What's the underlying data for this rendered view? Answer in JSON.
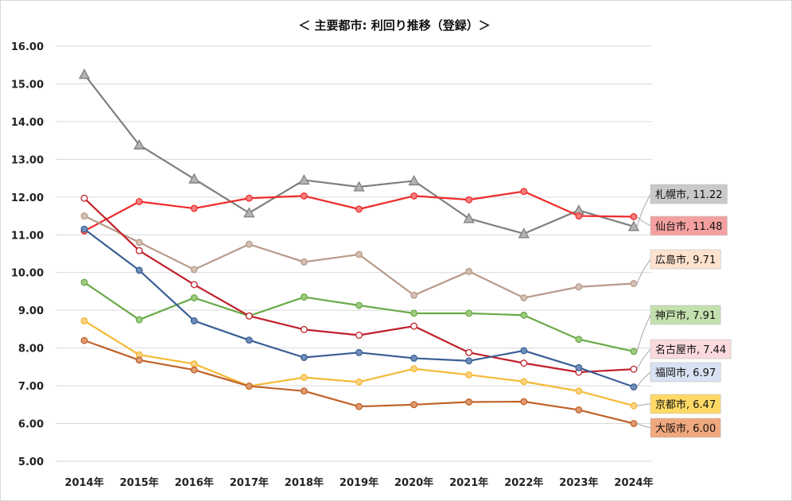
{
  "chart_data": {
    "type": "line",
    "title": "＜ 主要都市:  利回り推移（登録）＞",
    "xlabel": "",
    "ylabel": "",
    "ylim": [
      5,
      16
    ],
    "yticks": [
      "5.00",
      "6.00",
      "7.00",
      "8.00",
      "9.00",
      "10.00",
      "11.00",
      "12.00",
      "13.00",
      "14.00",
      "15.00",
      "16.00"
    ],
    "categories": [
      "2014年",
      "2015年",
      "2016年",
      "2017年",
      "2018年",
      "2019年",
      "2020年",
      "2021年",
      "2022年",
      "2023年",
      "2024年"
    ],
    "grid": true,
    "legend": "end-of-line labels",
    "series": [
      {
        "name": "札幌市",
        "label": "札幌市, 11.22",
        "color": "#7f7f7f",
        "marker": "triangle",
        "marker_fill": "#b3b3b3",
        "label_bg": "#c9c9c9",
        "values": [
          15.25,
          13.38,
          12.48,
          11.58,
          12.45,
          12.27,
          12.43,
          11.43,
          11.03,
          11.65,
          11.22
        ]
      },
      {
        "name": "仙台市",
        "label": "仙台市, 11.48",
        "color": "#ee2b2b",
        "marker": "circle",
        "marker_fill": "#f28080",
        "label_bg": "#f4a0a0",
        "values": [
          11.1,
          11.88,
          11.7,
          11.97,
          12.03,
          11.68,
          12.03,
          11.93,
          12.15,
          11.5,
          11.48
        ]
      },
      {
        "name": "広島市",
        "label": "広島市, 9.71",
        "color": "#b89a8a",
        "marker": "circle",
        "marker_fill": "#d4c0b4",
        "label_bg": "#fde3cf",
        "values": [
          11.5,
          10.8,
          10.08,
          10.75,
          10.28,
          10.48,
          9.4,
          10.03,
          9.33,
          9.62,
          9.71
        ]
      },
      {
        "name": "神戸市",
        "label": "神戸市, 7.91",
        "color": "#6aaa48",
        "marker": "circle",
        "marker_fill": "#9fcc7f",
        "label_bg": "#c3e0ae",
        "values": [
          9.74,
          8.75,
          9.33,
          8.85,
          9.35,
          9.13,
          8.92,
          8.92,
          8.87,
          8.23,
          7.91
        ]
      },
      {
        "name": "名古屋市",
        "label": "名古屋市, 7.44",
        "color": "#c0202a",
        "marker": "circle",
        "marker_fill": "#ffffff",
        "label_bg": "#fadadd",
        "values": [
          11.97,
          10.58,
          9.68,
          8.85,
          8.49,
          8.34,
          8.58,
          7.88,
          7.6,
          7.36,
          7.44
        ]
      },
      {
        "name": "福岡市",
        "label": "福岡市, 6.97",
        "color": "#3a5f95",
        "marker": "circle",
        "marker_fill": "#6f8fba",
        "label_bg": "#d9e1f2",
        "values": [
          11.15,
          10.06,
          8.72,
          8.21,
          7.75,
          7.88,
          7.73,
          7.66,
          7.93,
          7.48,
          6.97
        ]
      },
      {
        "name": "京都市",
        "label": "京都市, 6.47",
        "color": "#f5b935",
        "marker": "circle",
        "marker_fill": "#fad280",
        "label_bg": "#ffd965",
        "values": [
          8.72,
          7.82,
          7.58,
          6.99,
          7.22,
          7.1,
          7.45,
          7.29,
          7.11,
          6.86,
          6.47
        ]
      },
      {
        "name": "大阪市",
        "label": "大阪市, 6.00",
        "color": "#c0622a",
        "marker": "circle",
        "marker_fill": "#e09a70",
        "label_bg": "#f0a87e",
        "values": [
          8.2,
          7.68,
          7.42,
          6.99,
          6.86,
          6.45,
          6.5,
          6.57,
          6.58,
          6.36,
          6.0
        ]
      }
    ]
  }
}
